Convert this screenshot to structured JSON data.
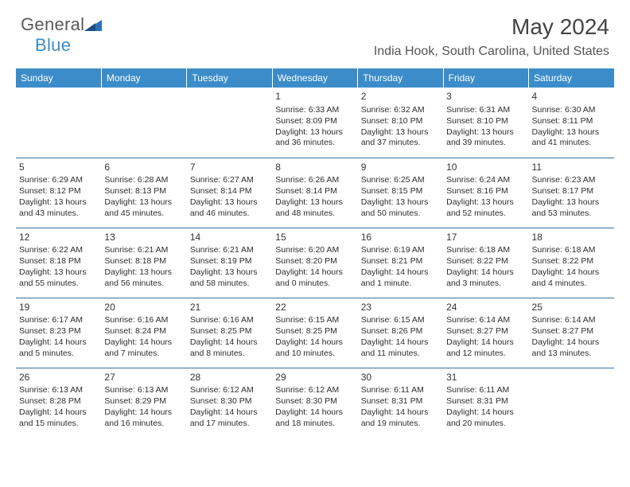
{
  "logo": {
    "part1": "General",
    "part2": "Blue"
  },
  "title": "May 2024",
  "location": "India Hook, South Carolina, United States",
  "colors": {
    "header_bg": "#3b8cc9",
    "header_text": "#ffffff",
    "border": "#3b6f9b",
    "body_text": "#2e2e2e",
    "logo_gray": "#5a5a5a",
    "logo_blue": "#3b8cc9"
  },
  "day_headers": [
    "Sunday",
    "Monday",
    "Tuesday",
    "Wednesday",
    "Thursday",
    "Friday",
    "Saturday"
  ],
  "weeks": [
    [
      {
        "num": "",
        "lines": []
      },
      {
        "num": "",
        "lines": []
      },
      {
        "num": "",
        "lines": []
      },
      {
        "num": "1",
        "lines": [
          "Sunrise: 6:33 AM",
          "Sunset: 8:09 PM",
          "Daylight: 13 hours",
          "and 36 minutes."
        ]
      },
      {
        "num": "2",
        "lines": [
          "Sunrise: 6:32 AM",
          "Sunset: 8:10 PM",
          "Daylight: 13 hours",
          "and 37 minutes."
        ]
      },
      {
        "num": "3",
        "lines": [
          "Sunrise: 6:31 AM",
          "Sunset: 8:10 PM",
          "Daylight: 13 hours",
          "and 39 minutes."
        ]
      },
      {
        "num": "4",
        "lines": [
          "Sunrise: 6:30 AM",
          "Sunset: 8:11 PM",
          "Daylight: 13 hours",
          "and 41 minutes."
        ]
      }
    ],
    [
      {
        "num": "5",
        "lines": [
          "Sunrise: 6:29 AM",
          "Sunset: 8:12 PM",
          "Daylight: 13 hours",
          "and 43 minutes."
        ]
      },
      {
        "num": "6",
        "lines": [
          "Sunrise: 6:28 AM",
          "Sunset: 8:13 PM",
          "Daylight: 13 hours",
          "and 45 minutes."
        ]
      },
      {
        "num": "7",
        "lines": [
          "Sunrise: 6:27 AM",
          "Sunset: 8:14 PM",
          "Daylight: 13 hours",
          "and 46 minutes."
        ]
      },
      {
        "num": "8",
        "lines": [
          "Sunrise: 6:26 AM",
          "Sunset: 8:14 PM",
          "Daylight: 13 hours",
          "and 48 minutes."
        ]
      },
      {
        "num": "9",
        "lines": [
          "Sunrise: 6:25 AM",
          "Sunset: 8:15 PM",
          "Daylight: 13 hours",
          "and 50 minutes."
        ]
      },
      {
        "num": "10",
        "lines": [
          "Sunrise: 6:24 AM",
          "Sunset: 8:16 PM",
          "Daylight: 13 hours",
          "and 52 minutes."
        ]
      },
      {
        "num": "11",
        "lines": [
          "Sunrise: 6:23 AM",
          "Sunset: 8:17 PM",
          "Daylight: 13 hours",
          "and 53 minutes."
        ]
      }
    ],
    [
      {
        "num": "12",
        "lines": [
          "Sunrise: 6:22 AM",
          "Sunset: 8:18 PM",
          "Daylight: 13 hours",
          "and 55 minutes."
        ]
      },
      {
        "num": "13",
        "lines": [
          "Sunrise: 6:21 AM",
          "Sunset: 8:18 PM",
          "Daylight: 13 hours",
          "and 56 minutes."
        ]
      },
      {
        "num": "14",
        "lines": [
          "Sunrise: 6:21 AM",
          "Sunset: 8:19 PM",
          "Daylight: 13 hours",
          "and 58 minutes."
        ]
      },
      {
        "num": "15",
        "lines": [
          "Sunrise: 6:20 AM",
          "Sunset: 8:20 PM",
          "Daylight: 14 hours",
          "and 0 minutes."
        ]
      },
      {
        "num": "16",
        "lines": [
          "Sunrise: 6:19 AM",
          "Sunset: 8:21 PM",
          "Daylight: 14 hours",
          "and 1 minute."
        ]
      },
      {
        "num": "17",
        "lines": [
          "Sunrise: 6:18 AM",
          "Sunset: 8:22 PM",
          "Daylight: 14 hours",
          "and 3 minutes."
        ]
      },
      {
        "num": "18",
        "lines": [
          "Sunrise: 6:18 AM",
          "Sunset: 8:22 PM",
          "Daylight: 14 hours",
          "and 4 minutes."
        ]
      }
    ],
    [
      {
        "num": "19",
        "lines": [
          "Sunrise: 6:17 AM",
          "Sunset: 8:23 PM",
          "Daylight: 14 hours",
          "and 5 minutes."
        ]
      },
      {
        "num": "20",
        "lines": [
          "Sunrise: 6:16 AM",
          "Sunset: 8:24 PM",
          "Daylight: 14 hours",
          "and 7 minutes."
        ]
      },
      {
        "num": "21",
        "lines": [
          "Sunrise: 6:16 AM",
          "Sunset: 8:25 PM",
          "Daylight: 14 hours",
          "and 8 minutes."
        ]
      },
      {
        "num": "22",
        "lines": [
          "Sunrise: 6:15 AM",
          "Sunset: 8:25 PM",
          "Daylight: 14 hours",
          "and 10 minutes."
        ]
      },
      {
        "num": "23",
        "lines": [
          "Sunrise: 6:15 AM",
          "Sunset: 8:26 PM",
          "Daylight: 14 hours",
          "and 11 minutes."
        ]
      },
      {
        "num": "24",
        "lines": [
          "Sunrise: 6:14 AM",
          "Sunset: 8:27 PM",
          "Daylight: 14 hours",
          "and 12 minutes."
        ]
      },
      {
        "num": "25",
        "lines": [
          "Sunrise: 6:14 AM",
          "Sunset: 8:27 PM",
          "Daylight: 14 hours",
          "and 13 minutes."
        ]
      }
    ],
    [
      {
        "num": "26",
        "lines": [
          "Sunrise: 6:13 AM",
          "Sunset: 8:28 PM",
          "Daylight: 14 hours",
          "and 15 minutes."
        ]
      },
      {
        "num": "27",
        "lines": [
          "Sunrise: 6:13 AM",
          "Sunset: 8:29 PM",
          "Daylight: 14 hours",
          "and 16 minutes."
        ]
      },
      {
        "num": "28",
        "lines": [
          "Sunrise: 6:12 AM",
          "Sunset: 8:30 PM",
          "Daylight: 14 hours",
          "and 17 minutes."
        ]
      },
      {
        "num": "29",
        "lines": [
          "Sunrise: 6:12 AM",
          "Sunset: 8:30 PM",
          "Daylight: 14 hours",
          "and 18 minutes."
        ]
      },
      {
        "num": "30",
        "lines": [
          "Sunrise: 6:11 AM",
          "Sunset: 8:31 PM",
          "Daylight: 14 hours",
          "and 19 minutes."
        ]
      },
      {
        "num": "31",
        "lines": [
          "Sunrise: 6:11 AM",
          "Sunset: 8:31 PM",
          "Daylight: 14 hours",
          "and 20 minutes."
        ]
      },
      {
        "num": "",
        "lines": []
      }
    ]
  ]
}
